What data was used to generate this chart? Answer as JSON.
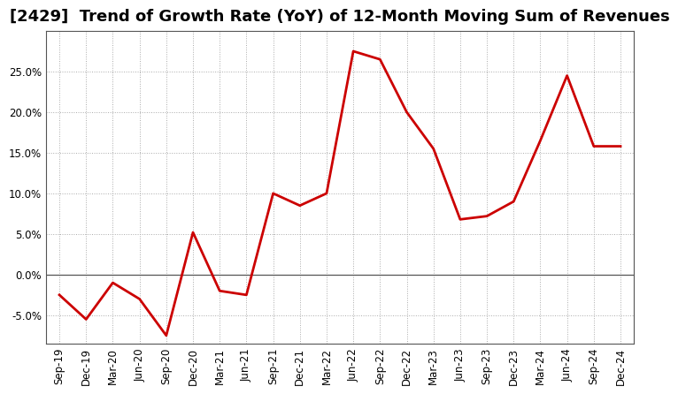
{
  "title": "[2429]  Trend of Growth Rate (YoY) of 12-Month Moving Sum of Revenues",
  "labels": [
    "Sep-19",
    "Dec-19",
    "Mar-20",
    "Jun-20",
    "Sep-20",
    "Dec-20",
    "Mar-21",
    "Jun-21",
    "Sep-21",
    "Dec-21",
    "Mar-22",
    "Jun-22",
    "Sep-22",
    "Dec-22",
    "Mar-23",
    "Jun-23",
    "Sep-23",
    "Dec-23",
    "Mar-24",
    "Jun-24",
    "Sep-24",
    "Dec-24"
  ],
  "values": [
    -2.5,
    -5.5,
    -1.0,
    -3.0,
    -7.5,
    5.2,
    -2.0,
    -2.5,
    10.0,
    8.5,
    10.0,
    27.5,
    26.5,
    20.0,
    15.5,
    6.8,
    7.2,
    9.0,
    16.5,
    24.5,
    15.8,
    15.8
  ],
  "line_color": "#cc0000",
  "line_width": 2.0,
  "bg_color": "#ffffff",
  "plot_bg_color": "#ffffff",
  "grid_color": "#aaaaaa",
  "ylim_min": -8.5,
  "ylim_max": 30.0,
  "yticks": [
    -5.0,
    0.0,
    5.0,
    10.0,
    15.0,
    20.0,
    25.0
  ],
  "title_fontsize": 13,
  "tick_fontsize": 8.5,
  "spine_color": "#555555"
}
